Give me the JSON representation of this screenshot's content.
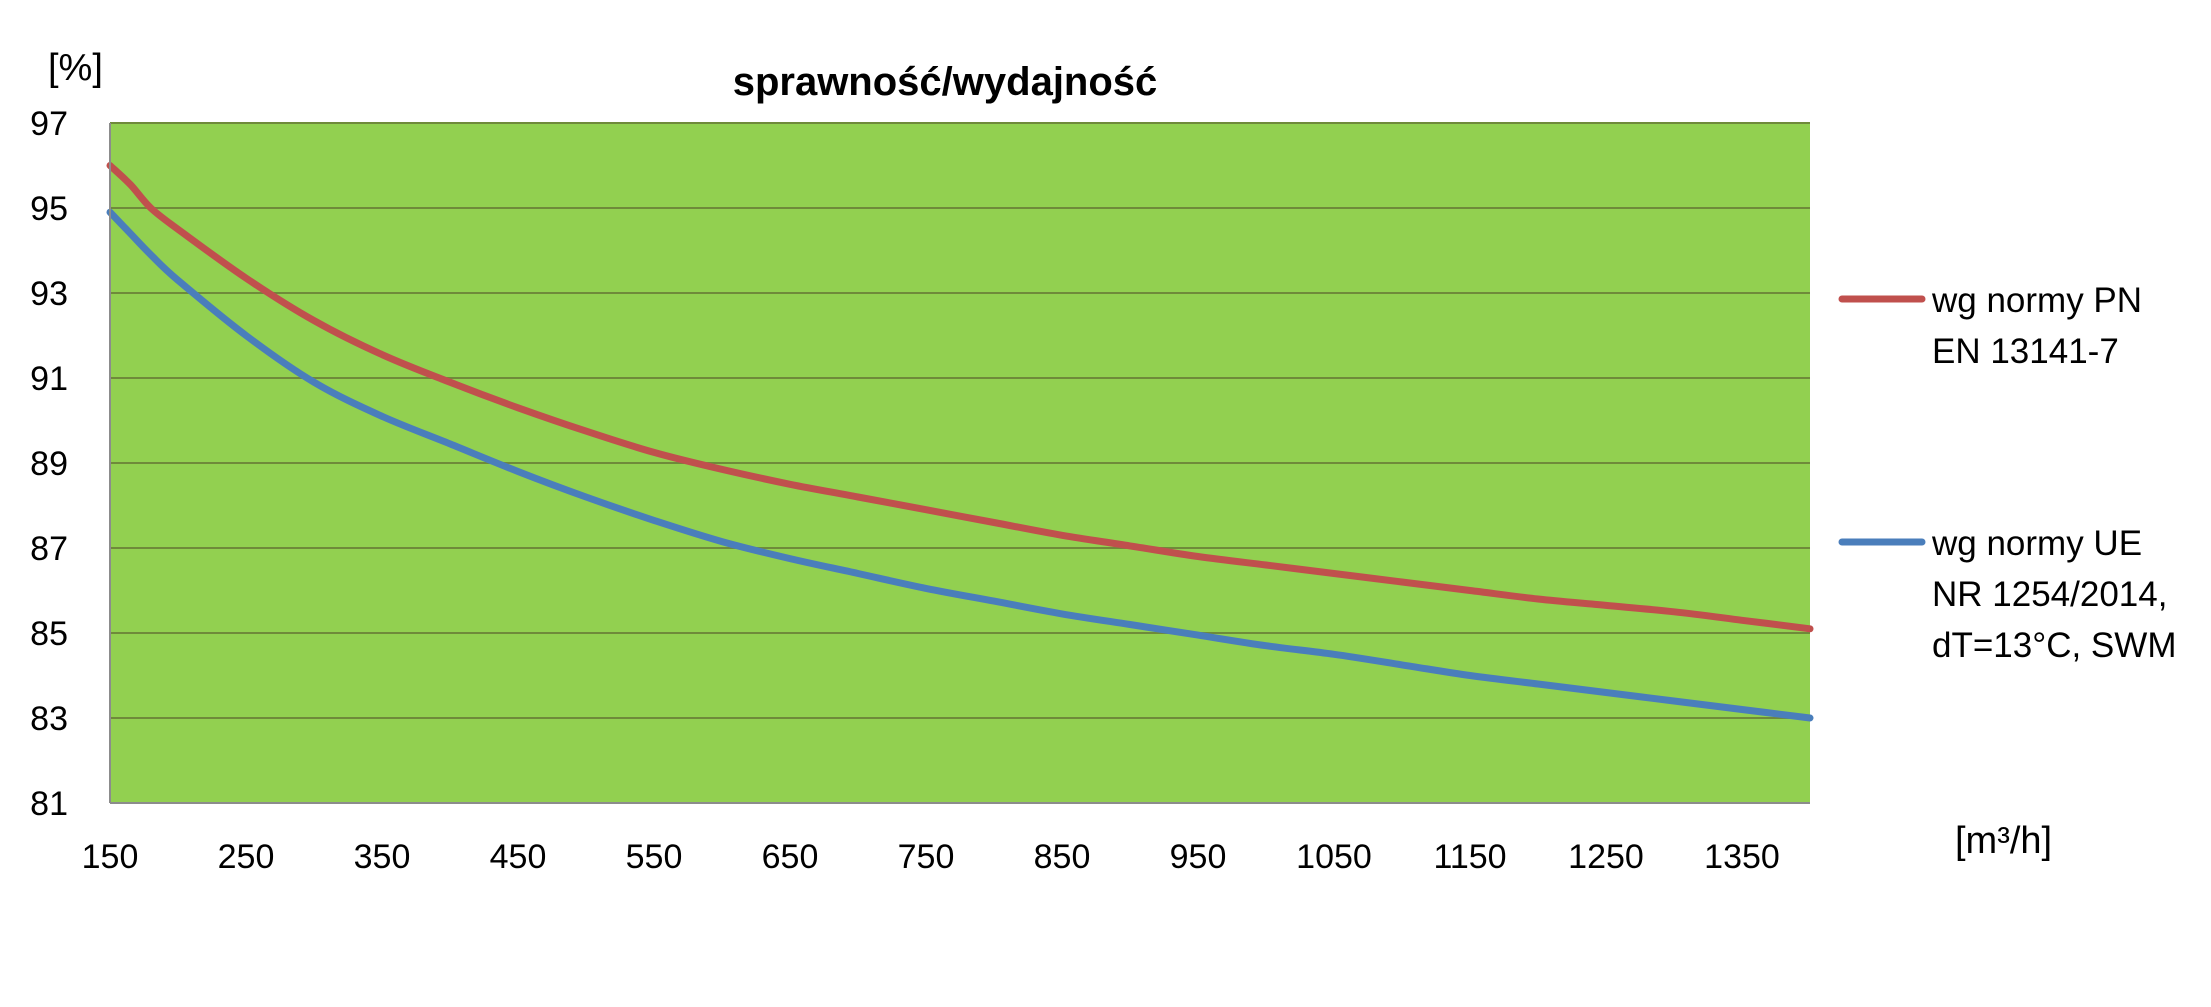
{
  "chart_data": {
    "type": "line",
    "title": "sprawność/wydajność",
    "ylabel": "[%]",
    "xlabel": "[m³/h]",
    "x_ticks": [
      150,
      250,
      350,
      450,
      550,
      650,
      750,
      850,
      950,
      1050,
      1150,
      1250,
      1350
    ],
    "y_ticks": [
      81,
      83,
      85,
      87,
      89,
      91,
      93,
      95,
      97
    ],
    "xlim": [
      150,
      1400
    ],
    "ylim": [
      81,
      97
    ],
    "grid": true,
    "legend_position": "right",
    "plot_background": "#92d050",
    "gridline_color": "#6f8a3a",
    "series": [
      {
        "name": "wg normy PN EN 13141-7",
        "legend_lines": [
          "wg normy PN",
          "EN 13141-7"
        ],
        "color": "#c0504d",
        "x": [
          150,
          165,
          180,
          200,
          250,
          300,
          350,
          400,
          450,
          500,
          550,
          600,
          650,
          700,
          750,
          800,
          850,
          900,
          950,
          1000,
          1050,
          1100,
          1150,
          1200,
          1250,
          1300,
          1350,
          1400
        ],
        "y": [
          96.0,
          95.55,
          95.0,
          94.5,
          93.35,
          92.35,
          91.55,
          90.9,
          90.3,
          89.75,
          89.25,
          88.85,
          88.5,
          88.2,
          87.9,
          87.6,
          87.3,
          87.05,
          86.8,
          86.6,
          86.4,
          86.2,
          86.0,
          85.8,
          85.65,
          85.5,
          85.3,
          85.1
        ]
      },
      {
        "name": "wg normy UE NR 1254/2014, dT=13°C, SWM",
        "legend_lines": [
          "wg normy UE",
          "NR 1254/2014,",
          "dT=13°C, SWM"
        ],
        "color": "#4a7ebb",
        "x": [
          150,
          165,
          180,
          200,
          250,
          300,
          350,
          400,
          450,
          500,
          550,
          600,
          650,
          700,
          750,
          800,
          850,
          900,
          950,
          1000,
          1050,
          1100,
          1150,
          1200,
          1250,
          1300,
          1350,
          1400
        ],
        "y": [
          94.9,
          94.4,
          93.9,
          93.3,
          92.0,
          90.9,
          90.1,
          89.45,
          88.8,
          88.2,
          87.65,
          87.15,
          86.75,
          86.4,
          86.05,
          85.75,
          85.45,
          85.2,
          84.95,
          84.7,
          84.5,
          84.25,
          84.0,
          83.8,
          83.6,
          83.4,
          83.2,
          83.0
        ]
      }
    ]
  }
}
